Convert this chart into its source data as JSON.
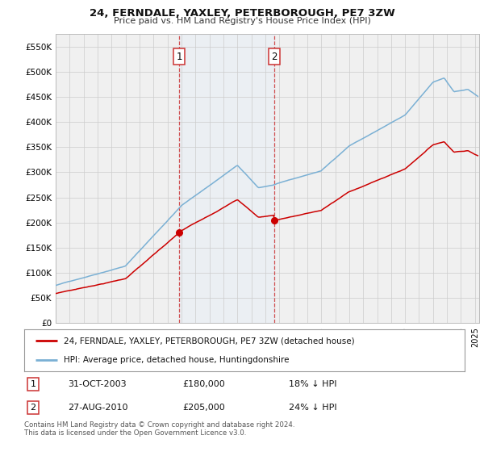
{
  "title": "24, FERNDALE, YAXLEY, PETERBOROUGH, PE7 3ZW",
  "subtitle": "Price paid vs. HM Land Registry's House Price Index (HPI)",
  "ylabel_ticks": [
    "£0",
    "£50K",
    "£100K",
    "£150K",
    "£200K",
    "£250K",
    "£300K",
    "£350K",
    "£400K",
    "£450K",
    "£500K",
    "£550K"
  ],
  "ytick_values": [
    0,
    50000,
    100000,
    150000,
    200000,
    250000,
    300000,
    350000,
    400000,
    450000,
    500000,
    550000
  ],
  "ylim": [
    0,
    575000
  ],
  "xlim_left": 1995,
  "xlim_right": 2025.3,
  "background_color": "#ffffff",
  "plot_bg_color": "#f0f0f0",
  "legend_entries": [
    "24, FERNDALE, YAXLEY, PETERBOROUGH, PE7 3ZW (detached house)",
    "HPI: Average price, detached house, Huntingdonshire"
  ],
  "legend_colors": [
    "#cc0000",
    "#7ab0d4"
  ],
  "sale1_date_x": 2003.83,
  "sale1_price": 180000,
  "sale2_date_x": 2010.65,
  "sale2_price": 205000,
  "footer": "Contains HM Land Registry data © Crown copyright and database right 2024.\nThis data is licensed under the Open Government Licence v3.0.",
  "grid_color": "#cccccc",
  "shade_color": "#ddeeff",
  "sale1_text": "31-OCT-2003",
  "sale1_price_text": "£180,000",
  "sale1_pct_text": "18% ↓ HPI",
  "sale2_text": "27-AUG-2010",
  "sale2_price_text": "£205,000",
  "sale2_pct_text": "24% ↓ HPI"
}
